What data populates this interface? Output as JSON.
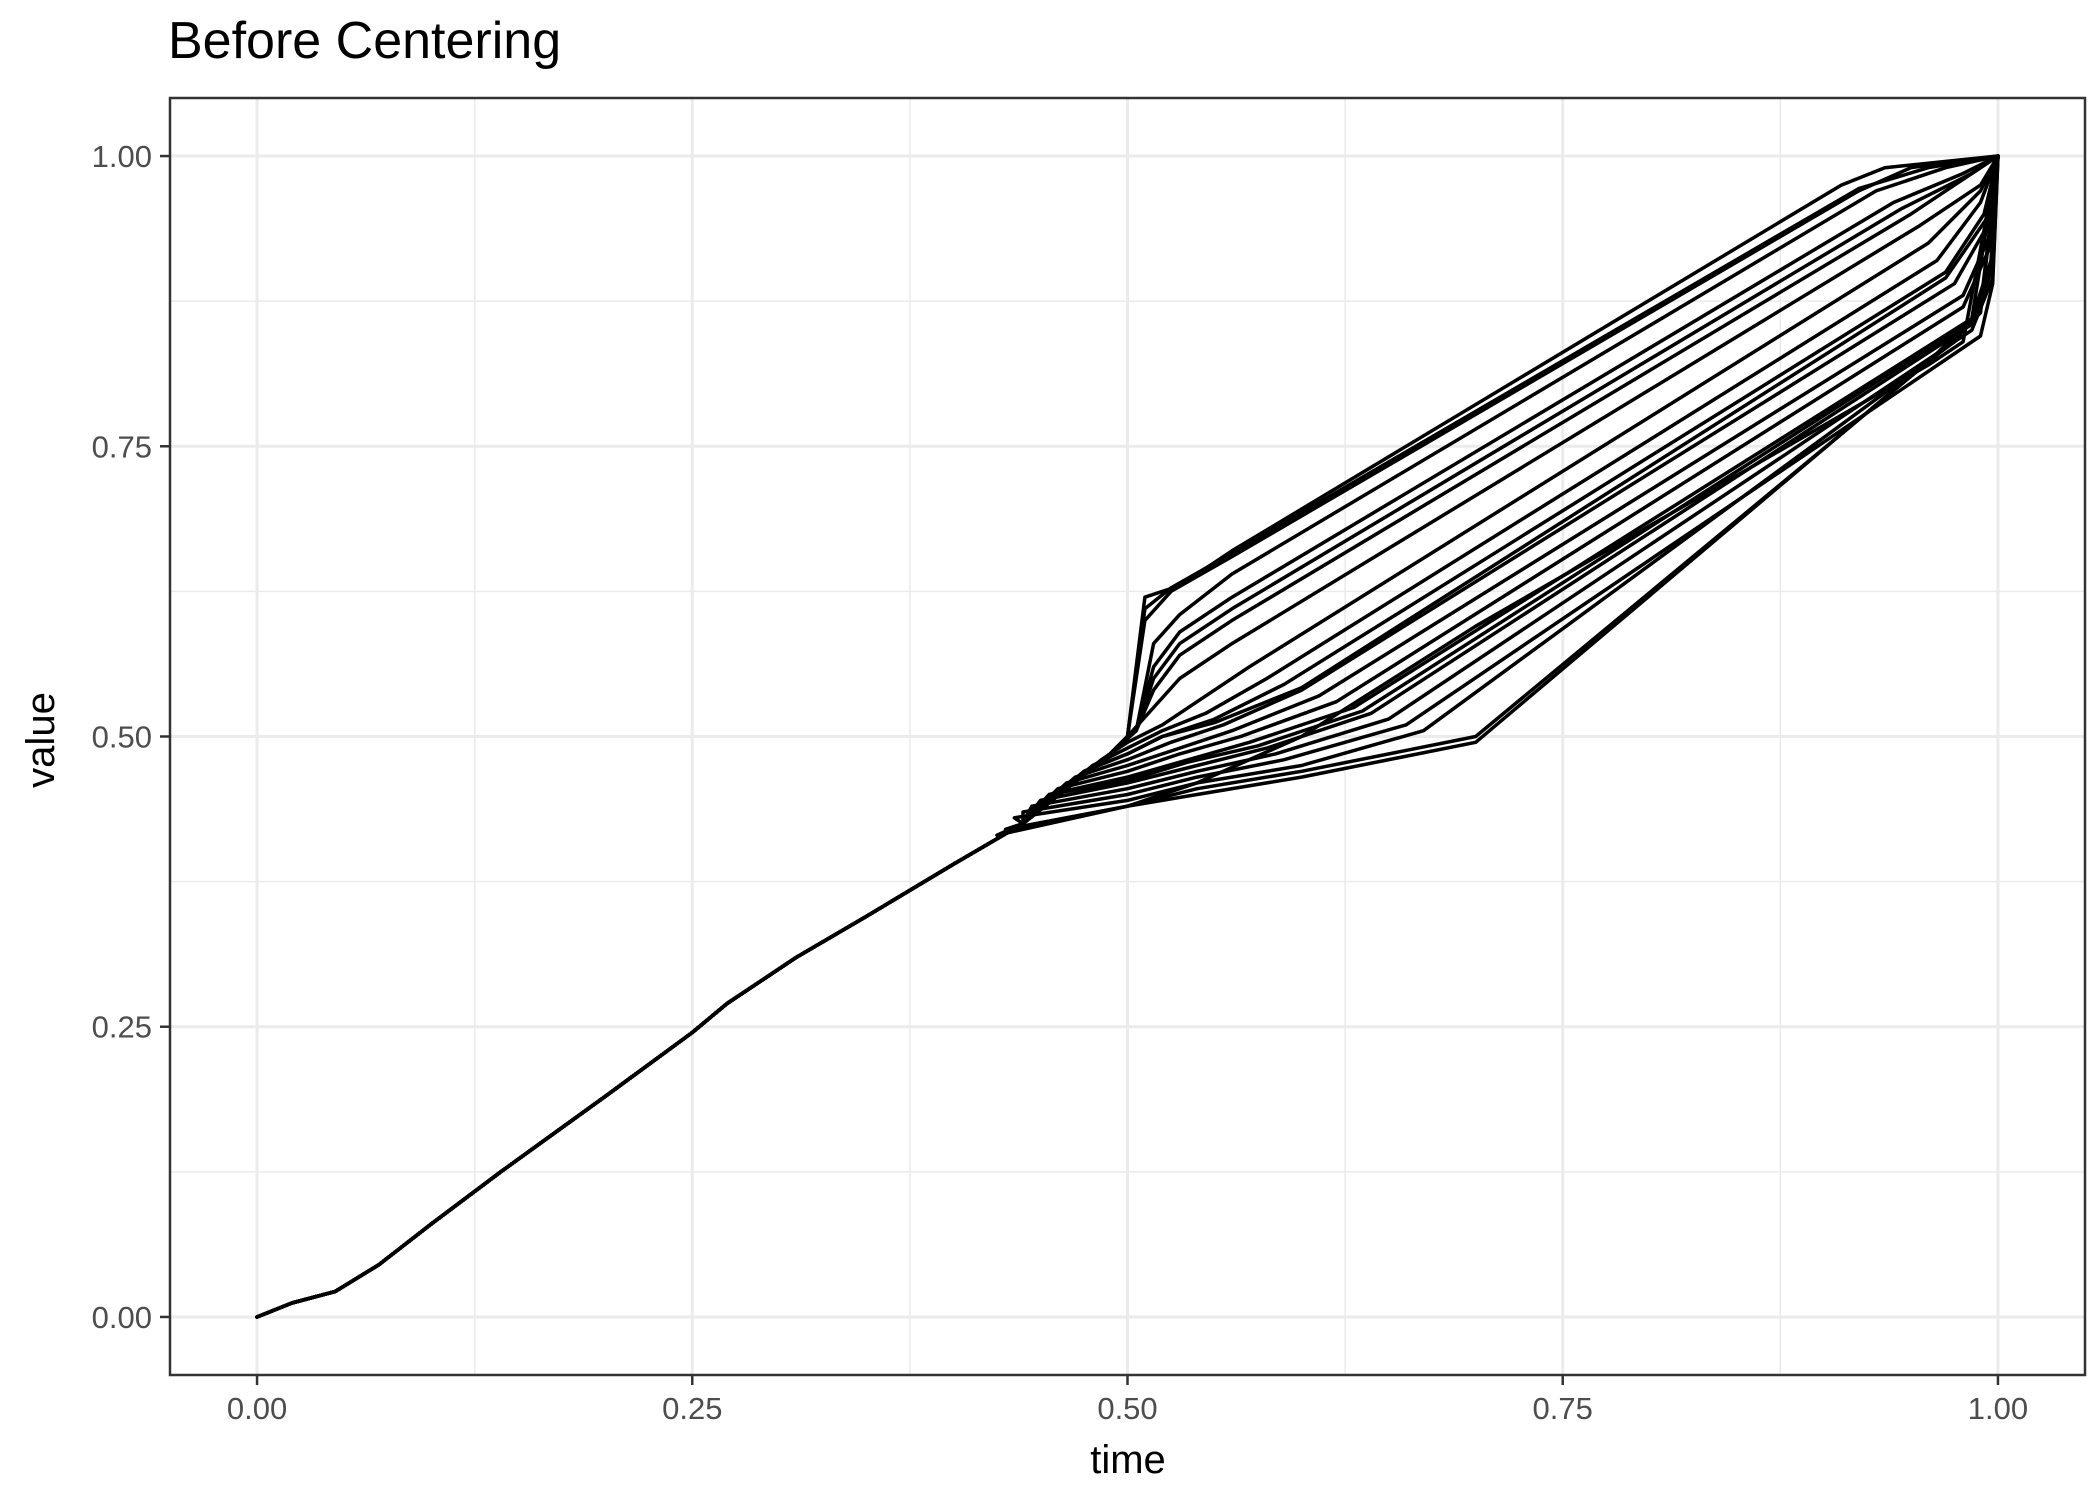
{
  "chart_data": {
    "type": "line",
    "title": "Before Centering",
    "xlabel": "time",
    "ylabel": "value",
    "xlim": [
      -0.05,
      1.05
    ],
    "ylim": [
      -0.05,
      1.05
    ],
    "x_ticks": [
      0.0,
      0.25,
      0.5,
      0.75,
      1.0
    ],
    "x_tick_labels": [
      "0.00",
      "0.25",
      "0.50",
      "0.75",
      "1.00"
    ],
    "y_ticks": [
      0.0,
      0.25,
      0.5,
      0.75,
      1.0
    ],
    "y_tick_labels": [
      "0.00",
      "0.25",
      "0.50",
      "0.75",
      "1.00"
    ],
    "grid": true,
    "legend": "none",
    "line_color": "#000000",
    "common_path": {
      "x": [
        0.0,
        0.02,
        0.045,
        0.07,
        0.1,
        0.14,
        0.2,
        0.25,
        0.27,
        0.31,
        0.35,
        0.4,
        0.44
      ],
      "y": [
        0.0,
        0.012,
        0.022,
        0.045,
        0.08,
        0.125,
        0.19,
        0.245,
        0.27,
        0.31,
        0.345,
        0.39,
        0.425
      ]
    },
    "series": [
      {
        "values": {
          "x": [
            0.49,
            0.5,
            0.51,
            0.53,
            0.56,
            0.91,
            0.935,
            1.0
          ],
          "y": [
            0.485,
            0.5,
            0.62,
            0.63,
            0.66,
            0.975,
            0.99,
            1.0
          ]
        }
      },
      {
        "values": {
          "x": [
            0.49,
            0.5,
            0.51,
            0.525,
            0.56,
            0.92,
            0.95,
            1.0
          ],
          "y": [
            0.485,
            0.5,
            0.6,
            0.625,
            0.655,
            0.97,
            0.99,
            1.0
          ]
        }
      },
      {
        "values": {
          "x": [
            0.49,
            0.505,
            0.515,
            0.53,
            0.56,
            0.93,
            0.97,
            1.0
          ],
          "y": [
            0.485,
            0.505,
            0.58,
            0.605,
            0.64,
            0.97,
            0.99,
            1.0
          ]
        }
      },
      {
        "values": {
          "x": [
            0.49,
            0.505,
            0.515,
            0.53,
            0.56,
            0.94,
            0.98,
            1.0
          ],
          "y": [
            0.485,
            0.505,
            0.56,
            0.59,
            0.62,
            0.96,
            0.985,
            1.0
          ]
        }
      },
      {
        "values": {
          "x": [
            0.49,
            0.505,
            0.515,
            0.53,
            0.56,
            0.95,
            0.985,
            1.0
          ],
          "y": [
            0.485,
            0.505,
            0.54,
            0.57,
            0.6,
            0.95,
            0.985,
            1.0
          ]
        }
      },
      {
        "values": {
          "x": [
            0.49,
            0.5,
            0.515,
            0.53,
            0.56,
            0.955,
            0.99,
            1.0
          ],
          "y": [
            0.485,
            0.5,
            0.525,
            0.55,
            0.58,
            0.94,
            0.975,
            1.0
          ]
        }
      },
      {
        "values": {
          "x": [
            0.485,
            0.5,
            0.52,
            0.54,
            0.57,
            0.96,
            0.99,
            1.0
          ],
          "y": [
            0.48,
            0.495,
            0.51,
            0.53,
            0.56,
            0.925,
            0.97,
            1.0
          ]
        }
      },
      {
        "values": {
          "x": [
            0.48,
            0.5,
            0.52,
            0.545,
            0.58,
            0.965,
            0.99,
            1.0
          ],
          "y": [
            0.475,
            0.49,
            0.505,
            0.52,
            0.55,
            0.91,
            0.96,
            1.0
          ]
        }
      },
      {
        "values": {
          "x": [
            0.475,
            0.5,
            0.52,
            0.55,
            0.59,
            0.97,
            0.992,
            1.0
          ],
          "y": [
            0.47,
            0.485,
            0.5,
            0.515,
            0.545,
            0.9,
            0.95,
            1.0
          ]
        }
      },
      {
        "values": {
          "x": [
            0.47,
            0.5,
            0.525,
            0.555,
            0.6,
            0.975,
            0.994,
            1.0
          ],
          "y": [
            0.465,
            0.48,
            0.495,
            0.51,
            0.54,
            0.89,
            0.94,
            1.0
          ]
        }
      },
      {
        "values": {
          "x": [
            0.465,
            0.5,
            0.53,
            0.56,
            0.61,
            0.98,
            0.995,
            1.0
          ],
          "y": [
            0.46,
            0.475,
            0.49,
            0.505,
            0.535,
            0.88,
            0.93,
            1.0
          ]
        }
      },
      {
        "values": {
          "x": [
            0.46,
            0.5,
            0.53,
            0.565,
            0.62,
            0.98,
            0.995,
            1.0
          ],
          "y": [
            0.455,
            0.47,
            0.485,
            0.5,
            0.53,
            0.87,
            0.92,
            1.0
          ]
        }
      },
      {
        "values": {
          "x": [
            0.455,
            0.5,
            0.535,
            0.57,
            0.63,
            0.985,
            0.996,
            1.0
          ],
          "y": [
            0.45,
            0.465,
            0.48,
            0.495,
            0.525,
            0.86,
            0.91,
            1.0
          ]
        }
      },
      {
        "values": {
          "x": [
            0.45,
            0.5,
            0.54,
            0.58,
            0.64,
            0.985,
            0.996,
            1.0
          ],
          "y": [
            0.445,
            0.46,
            0.475,
            0.49,
            0.52,
            0.855,
            0.9,
            1.0
          ]
        }
      },
      {
        "values": {
          "x": [
            0.445,
            0.5,
            0.54,
            0.585,
            0.65,
            0.985,
            0.997,
            1.0
          ],
          "y": [
            0.44,
            0.455,
            0.47,
            0.485,
            0.515,
            0.85,
            0.895,
            1.0
          ]
        }
      },
      {
        "values": {
          "x": [
            0.44,
            0.5,
            0.54,
            0.59,
            0.66,
            0.99,
            0.997,
            1.0
          ],
          "y": [
            0.435,
            0.45,
            0.465,
            0.48,
            0.51,
            0.845,
            0.89,
            1.0
          ]
        }
      },
      {
        "values": {
          "x": [
            0.435,
            0.5,
            0.54,
            0.6,
            0.67,
            0.975,
            0.99,
            1.0
          ],
          "y": [
            0.43,
            0.445,
            0.46,
            0.475,
            0.505,
            0.84,
            0.87,
            1.0
          ]
        }
      },
      {
        "values": {
          "x": [
            0.43,
            0.5,
            0.54,
            0.6,
            0.7,
            0.97,
            0.99,
            1.0
          ],
          "y": [
            0.42,
            0.44,
            0.455,
            0.47,
            0.5,
            0.835,
            0.865,
            1.0
          ]
        }
      },
      {
        "values": {
          "x": [
            0.43,
            0.5,
            0.54,
            0.6,
            0.7,
            0.965,
            0.985,
            1.0
          ],
          "y": [
            0.42,
            0.44,
            0.45,
            0.465,
            0.495,
            0.83,
            0.86,
            1.0
          ]
        }
      },
      {
        "values": {
          "x": [
            0.425,
            0.5,
            0.54,
            0.6,
            0.7,
            0.96,
            0.98,
            1.0
          ],
          "y": [
            0.415,
            0.44,
            0.46,
            0.5,
            0.595,
            0.82,
            0.84,
            1.0
          ]
        }
      },
      {
        "values": {
          "x": [
            0.49,
            0.5,
            0.51,
            0.525,
            0.56,
            0.92,
            0.96,
            1.0
          ],
          "y": [
            0.485,
            0.5,
            0.61,
            0.628,
            0.658,
            0.972,
            0.99,
            1.0
          ]
        }
      },
      {
        "values": {
          "x": [
            0.49,
            0.505,
            0.515,
            0.53,
            0.56,
            0.945,
            0.985,
            1.0
          ],
          "y": [
            0.485,
            0.505,
            0.55,
            0.58,
            0.61,
            0.955,
            0.985,
            1.0
          ]
        }
      },
      {
        "values": {
          "x": [
            0.475,
            0.5,
            0.52,
            0.55,
            0.6,
            0.97,
            0.993,
            1.0
          ],
          "y": [
            0.47,
            0.485,
            0.5,
            0.512,
            0.542,
            0.895,
            0.945,
            1.0
          ]
        }
      },
      {
        "values": {
          "x": [
            0.455,
            0.5,
            0.535,
            0.575,
            0.635,
            0.985,
            0.996,
            1.0
          ],
          "y": [
            0.45,
            0.462,
            0.478,
            0.492,
            0.522,
            0.858,
            0.905,
            1.0
          ]
        }
      }
    ]
  }
}
